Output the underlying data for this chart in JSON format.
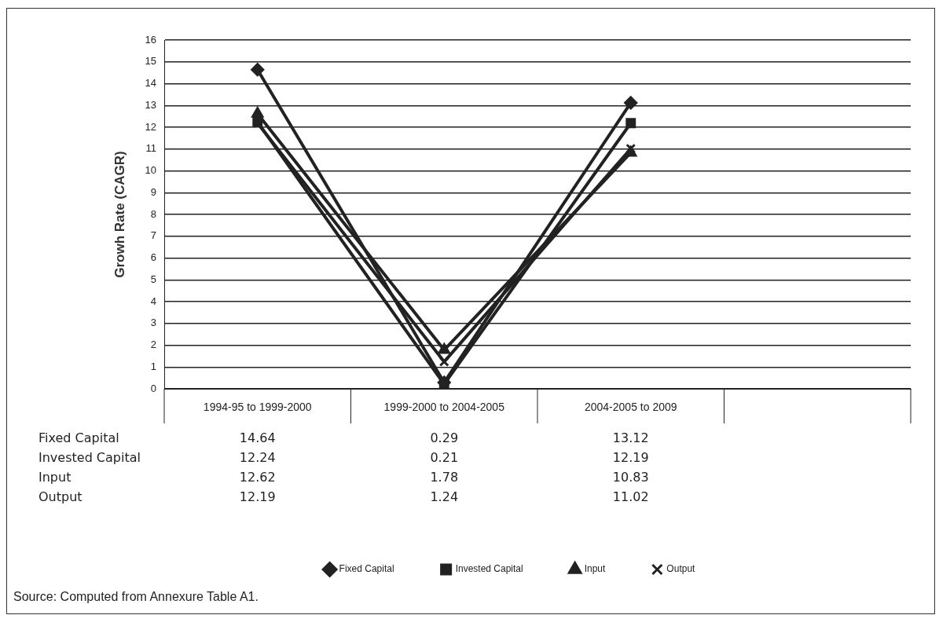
{
  "chart_data": {
    "type": "line",
    "ylabel": "Growh Rate (CAGR)",
    "categories": [
      "1994-95 to 1999-2000",
      "1999-2000 to 2004-2005",
      "2004-2005 to 2009",
      null
    ],
    "series": [
      {
        "name": "Fixed Capital",
        "color": "#222222",
        "marker": "diamond",
        "values": [
          14.64,
          0.29,
          13.12,
          null
        ]
      },
      {
        "name": "Invested Capital",
        "color": "#222222",
        "marker": "square",
        "values": [
          12.24,
          0.21,
          12.19,
          null
        ]
      },
      {
        "name": "Input",
        "color": "#222222",
        "marker": "triangle",
        "values": [
          12.62,
          1.78,
          10.83,
          null
        ]
      },
      {
        "name": "Output",
        "color": "#222222",
        "marker": "cross",
        "values": [
          12.19,
          1.24,
          11.02,
          null
        ]
      }
    ],
    "ylim": [
      0,
      16
    ],
    "yticks": [
      0,
      1,
      2,
      3,
      4,
      5,
      6,
      7,
      8,
      9,
      10,
      11,
      12,
      13,
      14,
      15,
      16
    ],
    "grid": "y",
    "legend": "bottom",
    "data_labels": true,
    "annotations": [
      "Source: Computed from Annexure Table A1."
    ]
  }
}
